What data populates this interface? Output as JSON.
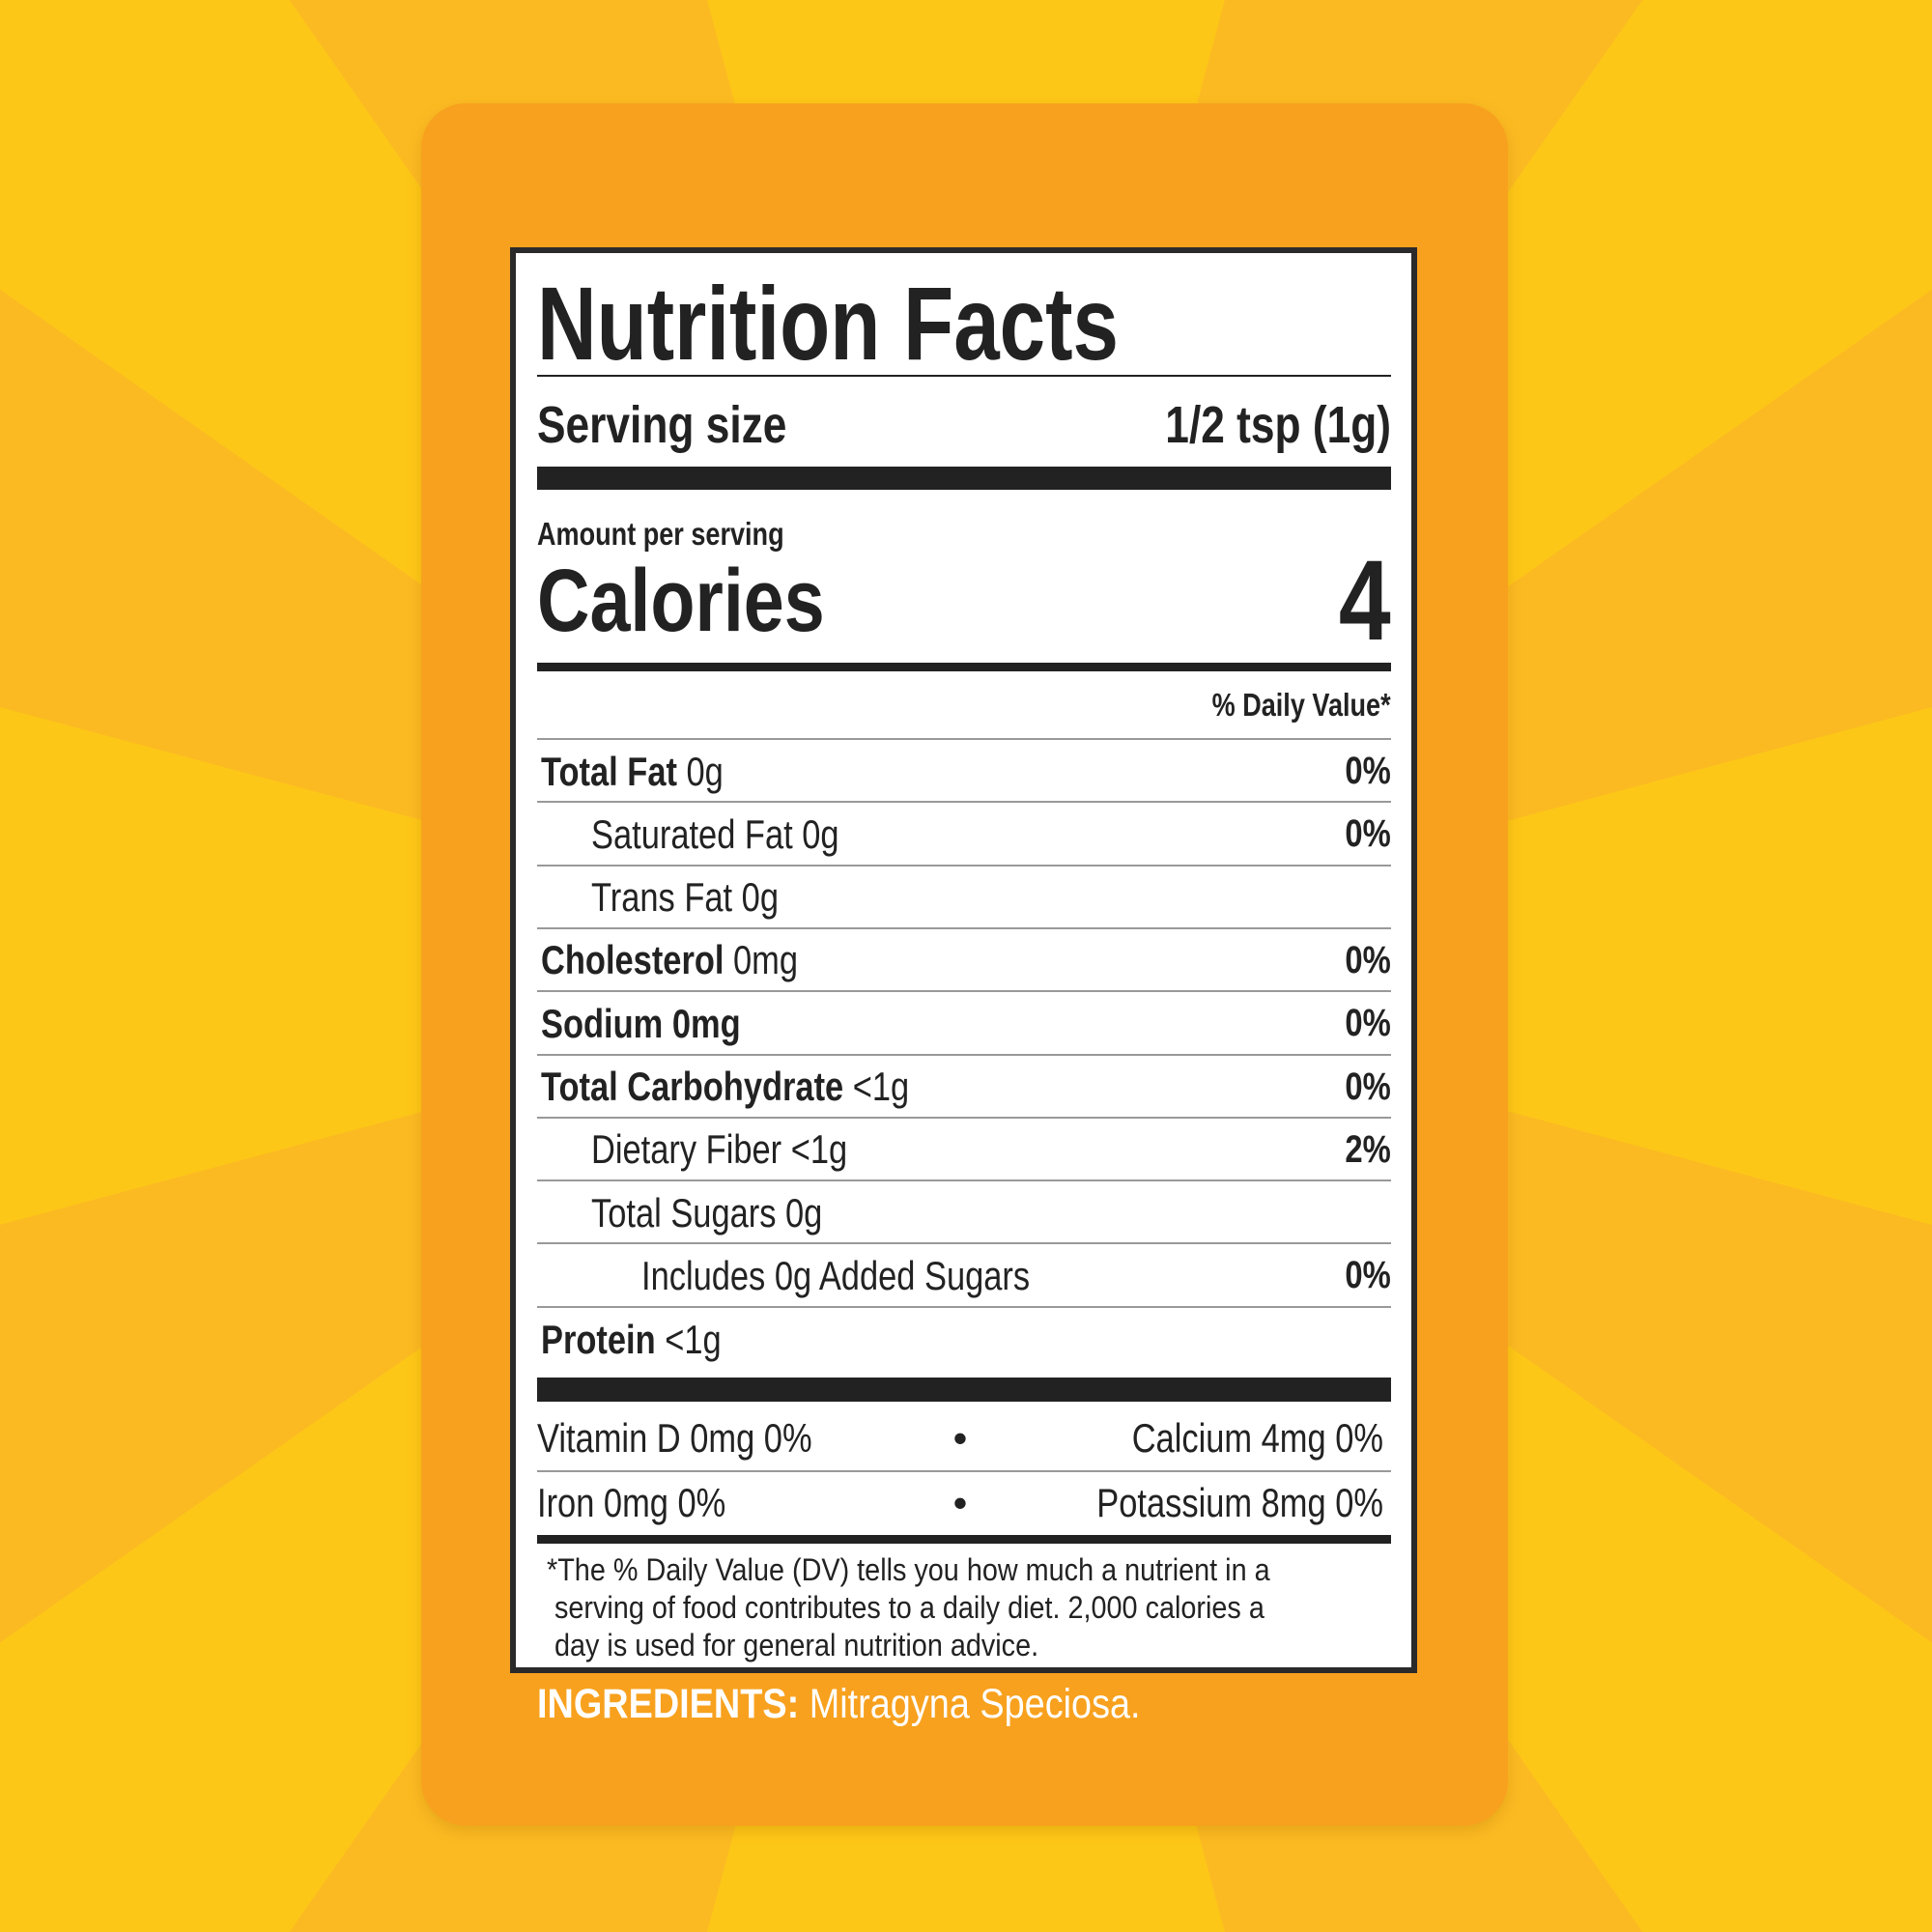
{
  "label": {
    "title": "Nutrition Facts",
    "serving_size_label": "Serving size",
    "serving_size_value": "1/2 tsp (1g)",
    "amount_per_serving": "Amount per serving",
    "calories_label": "Calories",
    "calories_value": "4",
    "daily_value_header": "% Daily Value*",
    "nutrients": [
      {
        "name": "Total Fat",
        "amount": "0g",
        "dv": "0%",
        "bold": true,
        "indent": 0
      },
      {
        "name": "Saturated Fat",
        "amount": "0g",
        "dv": "0%",
        "bold": false,
        "indent": 1
      },
      {
        "name": "Trans Fat",
        "amount": "0g",
        "dv": "",
        "bold": false,
        "indent": 1
      },
      {
        "name": "Cholesterol",
        "amount": "0mg",
        "dv": "0%",
        "bold": true,
        "indent": 0
      },
      {
        "name": "Sodium",
        "amount": "0mg",
        "dv": "0%",
        "bold": true,
        "bold_amount": true,
        "indent": 0
      },
      {
        "name": "Total Carbohydrate",
        "amount": "<1g",
        "dv": "0%",
        "bold": true,
        "indent": 0
      },
      {
        "name": "Dietary Fiber",
        "amount": "<1g",
        "dv": "2%",
        "bold": false,
        "indent": 1
      },
      {
        "name": "Total Sugars",
        "amount": "0g",
        "dv": "",
        "bold": false,
        "indent": 1
      },
      {
        "name": "Includes 0g Added Sugars",
        "amount": "",
        "dv": "0%",
        "bold": false,
        "indent": 2
      },
      {
        "name": "Protein",
        "amount": "<1g",
        "dv": "",
        "bold": true,
        "indent": 0
      }
    ],
    "vitamins": [
      {
        "left": "Vitamin D 0mg 0%",
        "right": "Calcium 4mg 0%"
      },
      {
        "left": "Iron 0mg 0%",
        "right": "Potassium 8mg 0%"
      }
    ],
    "bullet": "•",
    "footnote": [
      "*The % Daily Value (DV) tells you how much a nutrient in a",
      "serving of food contributes to a daily diet. 2,000 calories a",
      "day is used for general nutrition advice."
    ]
  },
  "ingredients": {
    "label": "INGREDIENTS:",
    "text": "Mitragyna Speciosa."
  },
  "colors": {
    "background": "#FDC717",
    "card": "#F8A11E",
    "text": "#222222"
  }
}
